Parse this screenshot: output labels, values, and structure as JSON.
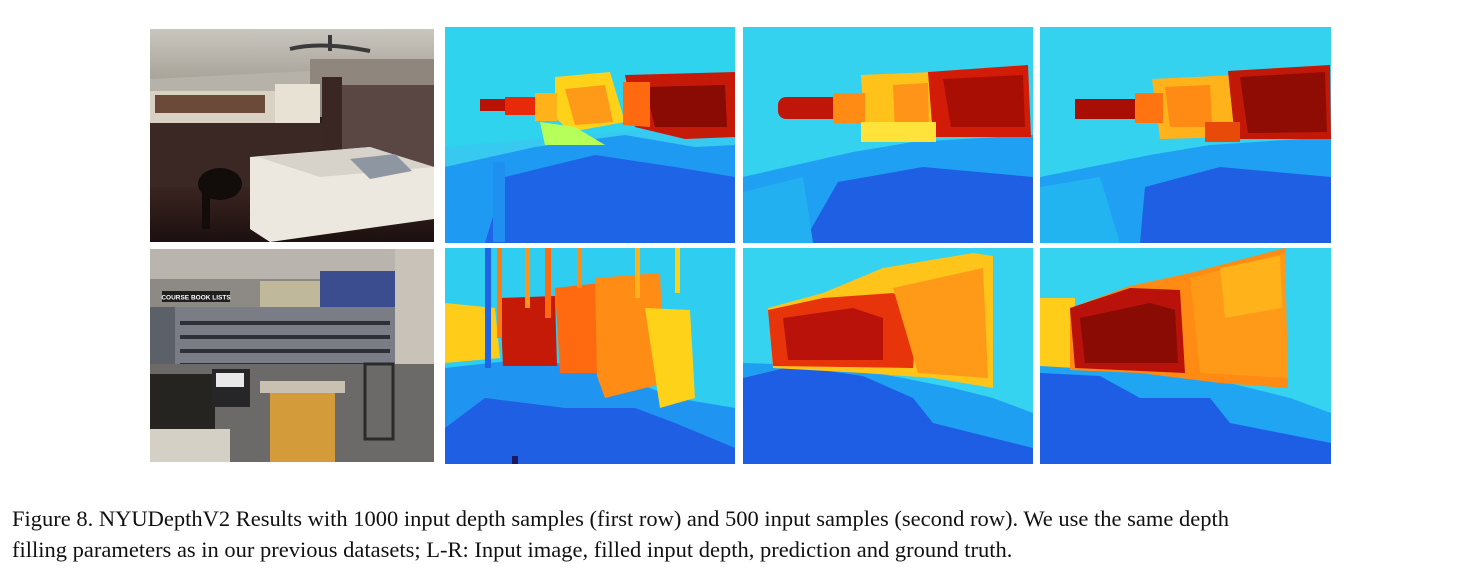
{
  "figure": {
    "caption_line1": "Figure 8. NYUDepthV2 Results with 1000 input depth samples (first row) and 500 input samples (second row). We use the same depth",
    "caption_line2": "filling parameters as in our previous datasets; L-R: Input image, filled input depth, prediction and ground truth."
  },
  "store_sign": {
    "text": "COURSE BOOK LISTS"
  },
  "colors": {
    "jet_dark_blue": "#1f3fd8",
    "jet_blue": "#1f8ff0",
    "jet_cyan": "#3ad6f2",
    "jet_yellow": "#ffd21a",
    "jet_orange": "#ff7a10",
    "jet_red": "#d41a0a",
    "jet_dark_red": "#8a0a04"
  }
}
